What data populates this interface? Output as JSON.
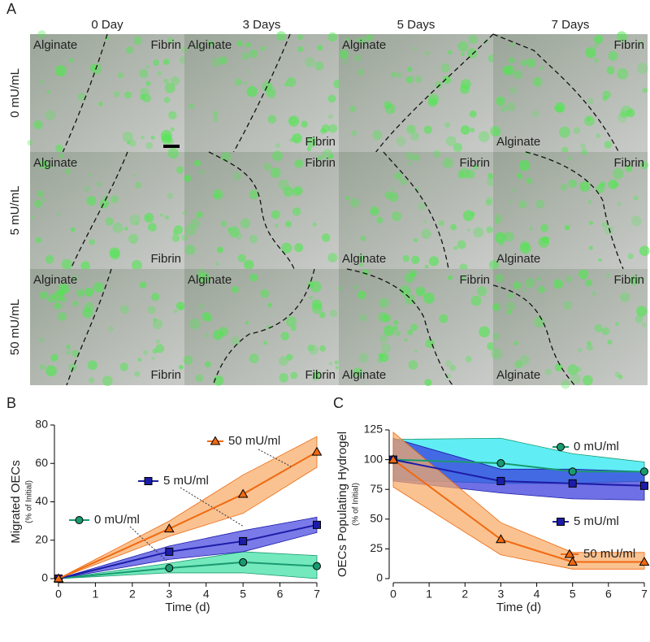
{
  "panel_a": {
    "label": "A",
    "columns": [
      "0 Day",
      "3 Days",
      "5 Days",
      "7 Days"
    ],
    "rows": [
      {
        "label": "0 mU/mL",
        "cells": [
          [
            "Alginate",
            "Fibrin"
          ],
          [
            "Alginate",
            "Fibrin"
          ],
          [
            "Alginate"
          ],
          [
            "Fibrin",
            "Alginate"
          ]
        ]
      },
      {
        "label": "5 mU/mL",
        "cells": [
          [
            "Alginate",
            "Fibrin"
          ],
          [
            "Fibrin"
          ],
          [
            "Fibrin",
            "Alginate"
          ],
          [
            "Fibrin",
            "Alginate"
          ]
        ]
      },
      {
        "label": "50 mU/mL",
        "cells": [
          [
            "Alginate",
            "Fibrin"
          ],
          [
            "Alginate",
            "Fibrin"
          ],
          [
            "Fibrin",
            "Alginate"
          ],
          [
            "Fibrin",
            "Alginate"
          ]
        ]
      }
    ]
  },
  "chart_data": [
    {
      "type": "line",
      "panel": "B",
      "y_label": "Migrated OECs",
      "y_sublabel": "(% of Initial)",
      "x_label": "Time (d)",
      "x": [
        0,
        3,
        5,
        7
      ],
      "xlim": [
        0,
        7
      ],
      "xticks": [
        0,
        1,
        2,
        3,
        4,
        5,
        6,
        7
      ],
      "ylim": [
        0,
        80
      ],
      "yticks": [
        0,
        20,
        40,
        60,
        80
      ],
      "series": [
        {
          "name": "0 mU/ml",
          "color": "#1a9a70",
          "band_color": "#3ee0a4",
          "marker": "circle",
          "values": [
            0,
            5.5,
            8.5,
            6.5
          ],
          "lower": [
            0,
            3,
            3,
            0
          ],
          "upper": [
            0,
            8,
            14,
            12
          ]
        },
        {
          "name": "5 mU/ml",
          "color": "#1c1ca8",
          "band_color": "#4646e0",
          "marker": "square",
          "values": [
            0,
            14,
            19.5,
            28
          ],
          "lower": [
            0,
            10,
            14,
            24
          ],
          "upper": [
            0,
            17,
            25,
            32
          ]
        },
        {
          "name": "50 mU/ml",
          "color": "#f06a10",
          "band_color": "#f8aa66",
          "marker": "triangle",
          "values": [
            0,
            26,
            44,
            66
          ],
          "lower": [
            0,
            22,
            34,
            58
          ],
          "upper": [
            0,
            30,
            54,
            74
          ]
        }
      ]
    },
    {
      "type": "line",
      "panel": "C",
      "y_label": "OECs Populating Hydrogel",
      "y_sublabel": "(% of Initial)",
      "x_label": "Time (d)",
      "x": [
        0,
        3,
        5,
        7
      ],
      "xlim": [
        0,
        7
      ],
      "xticks": [
        0,
        1,
        2,
        3,
        4,
        5,
        6,
        7
      ],
      "ylim": [
        0,
        125
      ],
      "yticks": [
        0,
        25,
        50,
        75,
        100,
        125
      ],
      "series": [
        {
          "name": "0 mU/ml",
          "color": "#1a9a70",
          "band_color": "#22e8f0",
          "marker": "circle",
          "values": [
            100,
            97,
            90,
            90
          ],
          "lower": [
            83,
            80,
            80,
            82
          ],
          "upper": [
            117,
            118,
            105,
            98
          ]
        },
        {
          "name": "5 mU/ml",
          "color": "#1c1ca8",
          "band_color": "#3838dc",
          "marker": "square",
          "values": [
            100,
            82,
            80,
            78
          ],
          "lower": [
            82,
            72,
            67,
            66
          ],
          "upper": [
            118,
            92,
            92,
            90
          ]
        },
        {
          "name": "50 mU/ml",
          "color": "#f06a10",
          "band_color": "#f8aa66",
          "marker": "triangle",
          "values": [
            100,
            33,
            14,
            14
          ],
          "lower": [
            77,
            20,
            8,
            8
          ],
          "upper": [
            123,
            47,
            22,
            22
          ]
        }
      ]
    }
  ]
}
